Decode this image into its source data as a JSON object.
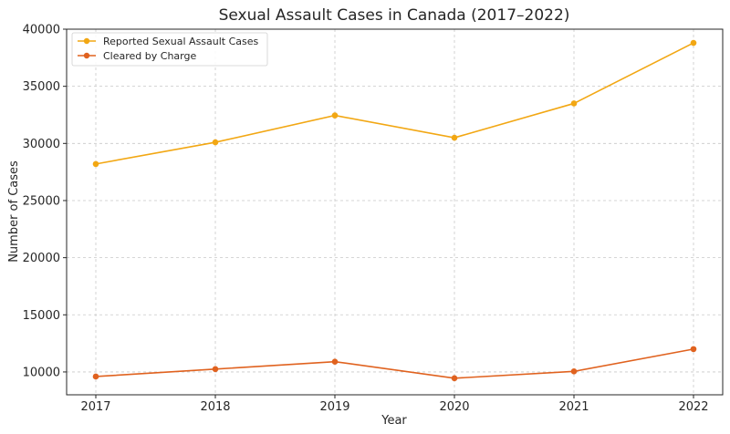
{
  "chart_data": {
    "type": "line",
    "title": "Sexual Assault Cases in Canada (2017–2022)",
    "xlabel": "Year",
    "ylabel": "Number of Cases",
    "categories": [
      "2017",
      "2018",
      "2019",
      "2020",
      "2021",
      "2022"
    ],
    "yticks": [
      10000,
      15000,
      20000,
      25000,
      30000,
      35000,
      40000
    ],
    "ylim": [
      8000,
      40000
    ],
    "grid": true,
    "legend_position": "top-left",
    "series": [
      {
        "name": "Reported Sexual Assault Cases",
        "color": "#f2a713",
        "values": [
          28200,
          30100,
          32450,
          30500,
          33500,
          38800
        ]
      },
      {
        "name": "Cleared by Charge",
        "color": "#e0621f",
        "values": [
          9600,
          10250,
          10900,
          9450,
          10050,
          12000
        ]
      }
    ]
  }
}
